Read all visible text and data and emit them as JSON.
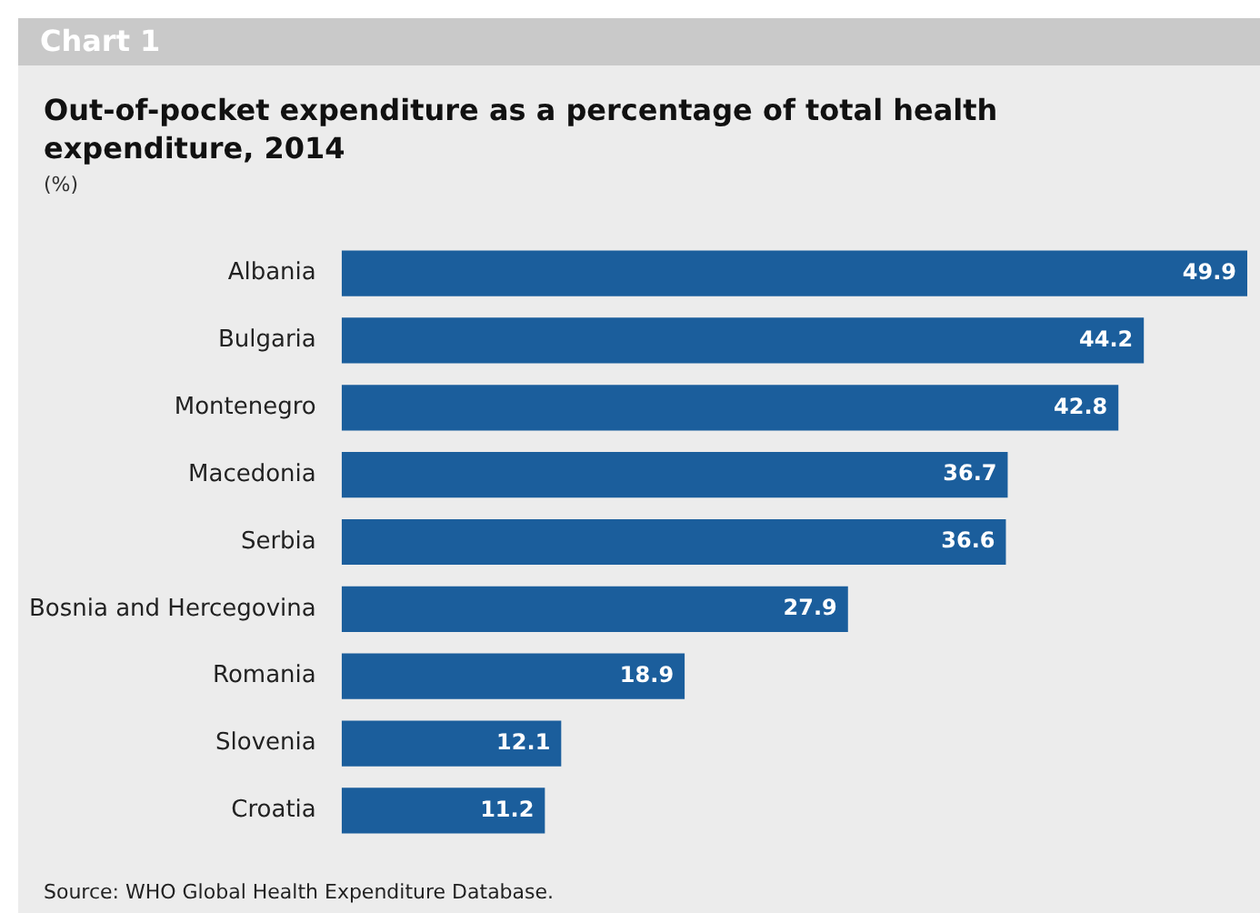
{
  "chart_data": {
    "type": "bar",
    "orientation": "horizontal",
    "title": "Out-of-pocket expenditure as a percentage of total health expenditure, 2014",
    "subtitle": "(%)",
    "categories": [
      "Albania",
      "Bulgaria",
      "Montenegro",
      "Macedonia",
      "Serbia",
      "Bosnia and Hercegovina",
      "Romania",
      "Slovenia",
      "Croatia"
    ],
    "values": [
      49.9,
      44.2,
      42.8,
      36.7,
      36.6,
      27.9,
      18.9,
      12.1,
      11.2
    ],
    "color": "#1b5e9c",
    "data_labels": true,
    "legend": false,
    "tick_labels": "y",
    "annotations": [
      "Chart 1",
      "Source: WHO Global Health Expenditure Database."
    ]
  }
}
